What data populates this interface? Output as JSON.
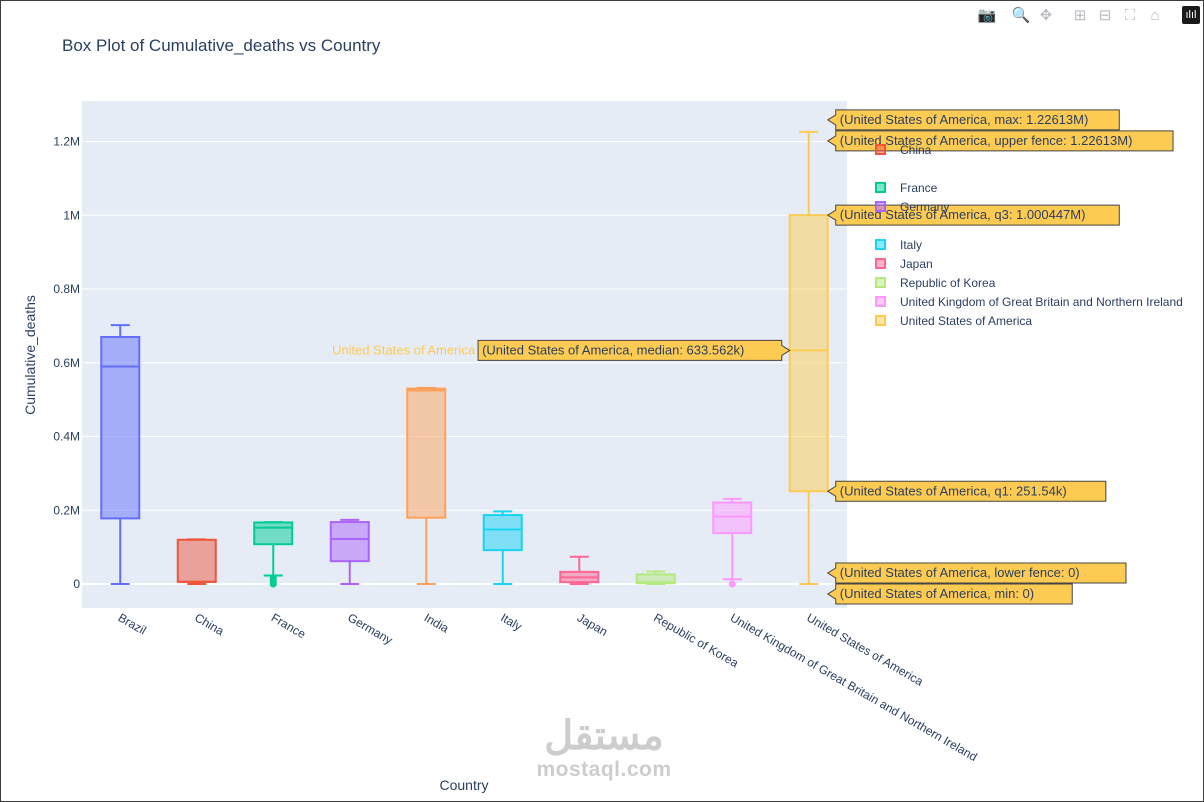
{
  "modebar": {
    "items": [
      {
        "name": "camera-icon",
        "glyph": "📷"
      },
      {
        "name": "zoom-icon",
        "glyph": "🔍"
      },
      {
        "name": "pan-icon",
        "glyph": "✥"
      },
      {
        "name": "zoom-in-icon",
        "glyph": "⊞"
      },
      {
        "name": "zoom-out-icon",
        "glyph": "⊟"
      },
      {
        "name": "autoscale-icon",
        "glyph": "⛶"
      },
      {
        "name": "reset-axes-icon",
        "glyph": "⌂"
      }
    ],
    "brand_glyph": "ılıl"
  },
  "chart_data": {
    "type": "box",
    "title": "Box Plot of Cumulative_deaths vs Country",
    "xlabel": "Country",
    "ylabel": "Cumulative_deaths",
    "ylim": [
      -65000,
      1310000
    ],
    "yticks": [
      {
        "value": 0,
        "label": "0"
      },
      {
        "value": 200000,
        "label": "0.2M"
      },
      {
        "value": 400000,
        "label": "0.4M"
      },
      {
        "value": 600000,
        "label": "0.6M"
      },
      {
        "value": 800000,
        "label": "0.8M"
      },
      {
        "value": 1000000,
        "label": "1M"
      },
      {
        "value": 1200000,
        "label": "1.2M"
      }
    ],
    "grid": true,
    "legend_position": "right",
    "series": [
      {
        "name": "Brazil",
        "color": "#636efa",
        "min": 0,
        "q1": 178000,
        "median": 590000,
        "q3": 670000,
        "max": 702000
      },
      {
        "name": "China",
        "color": "#ef553b",
        "min": 0,
        "q1": 6000,
        "median": 6000,
        "q3": 120000,
        "max": 121000
      },
      {
        "name": "France",
        "color": "#00cc96",
        "min": 0,
        "q1": 108000,
        "median": 153000,
        "q3": 167000,
        "max": 168000,
        "lowerfence": 23000,
        "outliers": [
          0,
          5000,
          10000,
          16000
        ]
      },
      {
        "name": "Germany",
        "color": "#ab63fa",
        "min": 0,
        "q1": 62000,
        "median": 122000,
        "q3": 168000,
        "max": 174000
      },
      {
        "name": "India",
        "color": "#ffa15a",
        "min": 0,
        "q1": 180000,
        "median": 525000,
        "q3": 530000,
        "max": 532000
      },
      {
        "name": "Italy",
        "color": "#19d3f3",
        "min": 0,
        "q1": 92000,
        "median": 148000,
        "q3": 187000,
        "max": 197000
      },
      {
        "name": "Japan",
        "color": "#ff6692",
        "min": 0,
        "q1": 5000,
        "median": 18000,
        "q3": 33000,
        "max": 74000
      },
      {
        "name": "Republic of Korea",
        "color": "#b6e880",
        "min": 0,
        "q1": 2000,
        "median": 5000,
        "q3": 26000,
        "max": 34000
      },
      {
        "name": "United Kingdom of Great Britain and Northern Ireland",
        "color": "#ff97ff",
        "min": 0,
        "q1": 138000,
        "median": 183000,
        "q3": 221000,
        "max": 231000,
        "lowerfence": 13000,
        "outliers": [
          0
        ]
      },
      {
        "name": "United States of America",
        "color": "#fecb52",
        "min": 0,
        "q1": 251540,
        "median": 633562,
        "q3": 1000447,
        "max": 1226130
      }
    ],
    "hover": {
      "series_label": "United States of America",
      "labels": [
        "(United States of America, max: 1.22613M)",
        "(United States of America, upper fence: 1.22613M)",
        "(United States of America, q3: 1.000447M)",
        "(United States of America, median: 633.562k)",
        "(United States of America, q1: 251.54k)",
        "(United States of America, lower fence: 0)",
        "(United States of America, min: 0)"
      ]
    }
  },
  "legend": {
    "items": [
      {
        "label": "China",
        "color": "#ef553b"
      },
      {
        "label": "France",
        "color": "#00cc96"
      },
      {
        "label": "Germany",
        "color": "#ab63fa"
      },
      {
        "label": "Italy",
        "color": "#19d3f3"
      },
      {
        "label": "Japan",
        "color": "#ff6692"
      },
      {
        "label": "Republic of Korea",
        "color": "#b6e880"
      },
      {
        "label": "United Kingdom of Great Britain and Northern Ireland",
        "color": "#ff97ff"
      },
      {
        "label": "United States of America",
        "color": "#fecb52"
      }
    ]
  },
  "watermark": {
    "logo": "مستقل",
    "text": "mostaql.com"
  }
}
